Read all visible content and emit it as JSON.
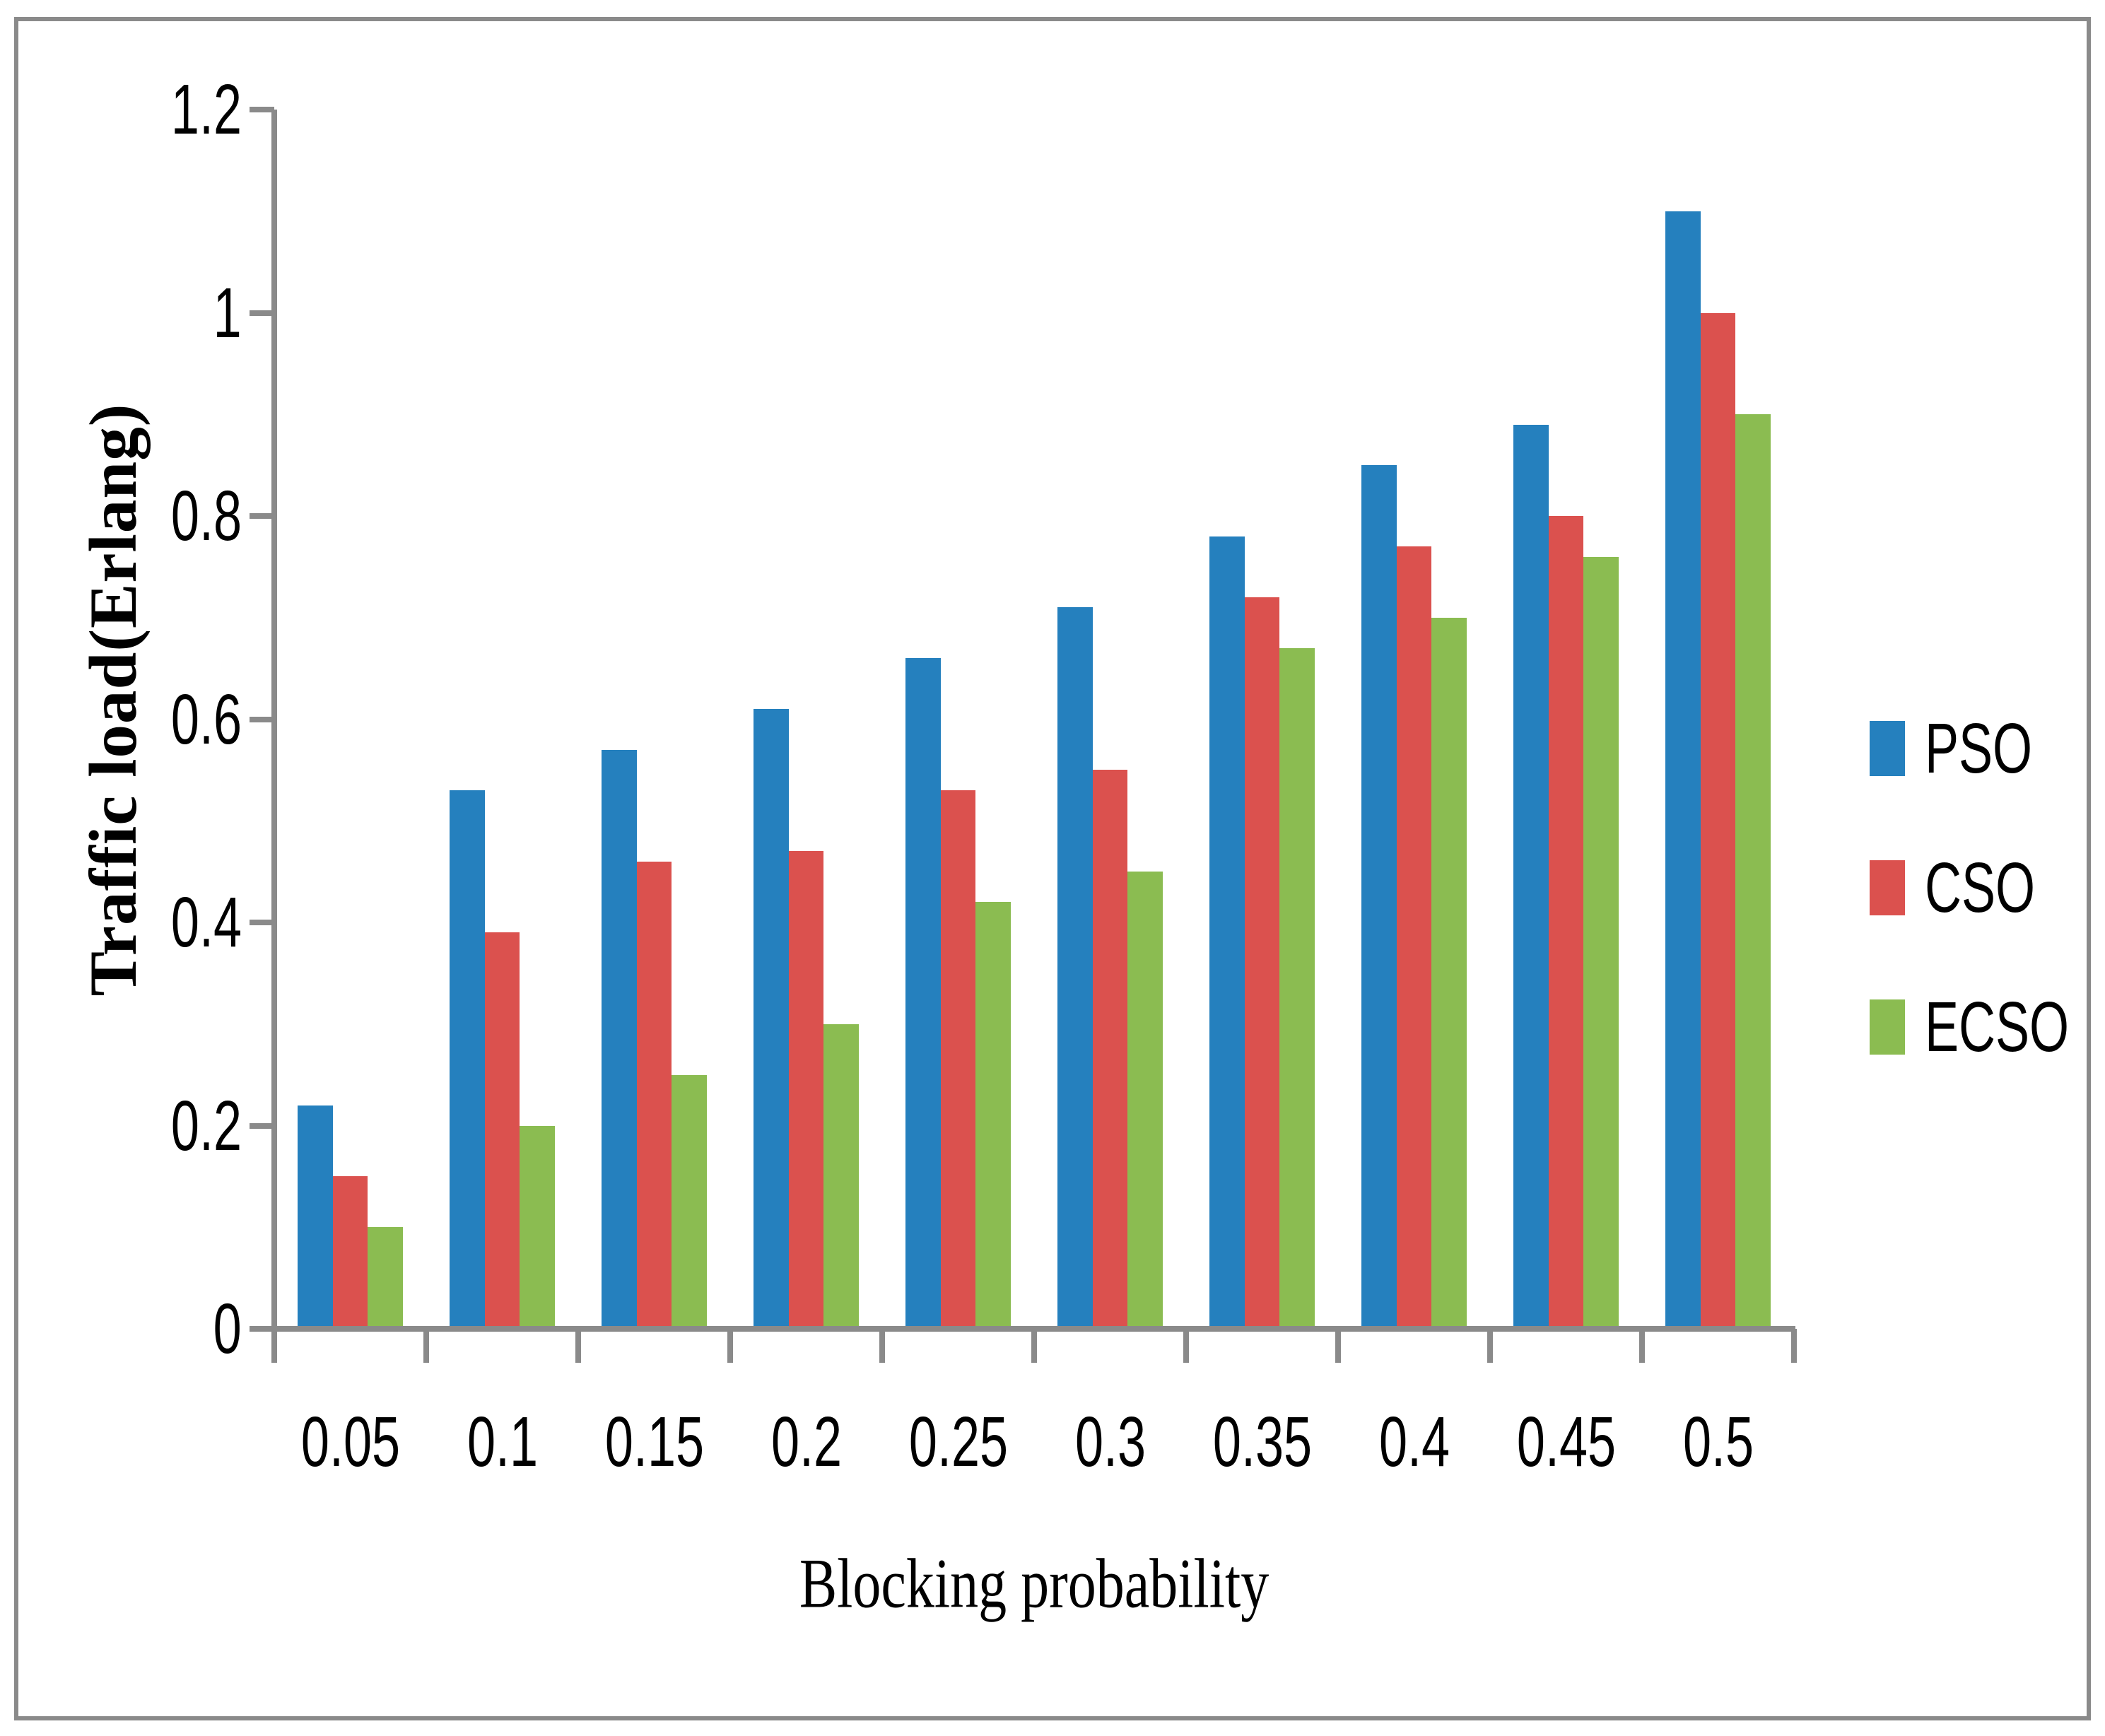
{
  "figure": {
    "background": "#ffffff",
    "border_color": "#8a8a8a",
    "axis_color": "#8a8a8a",
    "text_color": "#000000"
  },
  "chart_data": {
    "type": "bar",
    "title": "",
    "xlabel": "Blocking probability",
    "ylabel": "Traffic load(Erlang)",
    "categories": [
      "0.05",
      "0.1",
      "0.15",
      "0.2",
      "0.25",
      "0.3",
      "0.35",
      "0.4",
      "0.45",
      "0.5"
    ],
    "y_ticks": [
      "0",
      "0.2",
      "0.4",
      "0.6",
      "0.8",
      "1",
      "1.2"
    ],
    "y_tick_values": [
      0,
      0.2,
      0.4,
      0.6,
      0.8,
      1,
      1.2
    ],
    "ylim": [
      0,
      1.2
    ],
    "grid": false,
    "legend_position": "right",
    "series": [
      {
        "name": "PSO",
        "color": "#2580BE",
        "values": [
          0.22,
          0.53,
          0.57,
          0.61,
          0.66,
          0.71,
          0.78,
          0.85,
          0.89,
          1.1
        ]
      },
      {
        "name": "CSO",
        "color": "#DB514E",
        "values": [
          0.15,
          0.39,
          0.46,
          0.47,
          0.53,
          0.55,
          0.72,
          0.77,
          0.8,
          1.0
        ]
      },
      {
        "name": "ECSO",
        "color": "#8BBC51",
        "values": [
          0.1,
          0.2,
          0.25,
          0.3,
          0.42,
          0.45,
          0.67,
          0.7,
          0.76,
          0.9
        ]
      }
    ]
  }
}
